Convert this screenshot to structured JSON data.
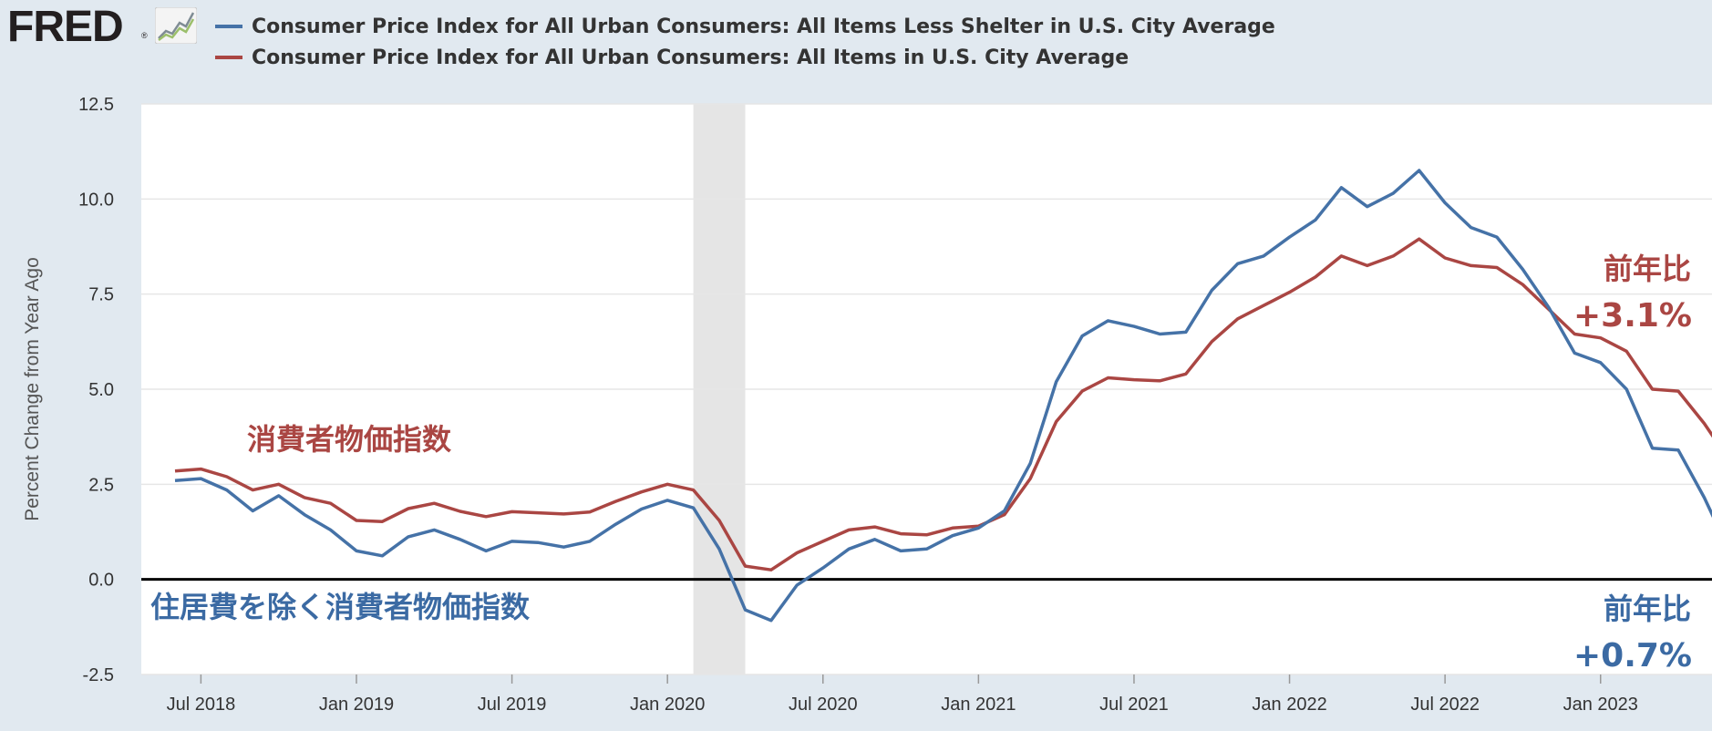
{
  "logo": {
    "text": "FRED",
    "reg": "®"
  },
  "legend": [
    {
      "label": "Consumer Price Index for All Urban Consumers: All Items Less Shelter in U.S. City Average",
      "color": "#4572a7"
    },
    {
      "label": "Consumer Price Index for All Urban Consumers: All Items in U.S. City Average",
      "color": "#aa4643"
    }
  ],
  "colors": {
    "background": "#e1e9f0",
    "plot": "#ffffff",
    "recession": "#e5e5e5",
    "zero_line": "#000000",
    "grid": "#e6e6e6"
  },
  "annotations": {
    "cpi_label": "消費者物価指数",
    "less_shelter_label": "住居費を除く消費者物価指数",
    "cpi_yoy_title": "前年比",
    "cpi_yoy_value": "+3.1%",
    "less_shelter_yoy_title": "前年比",
    "less_shelter_yoy_value": "+0.7%"
  },
  "chart_data": {
    "type": "line",
    "ylabel": "Percent Change from Year Ago",
    "ylim": [
      -2.5,
      12.5
    ],
    "yticks": [
      -2.5,
      0.0,
      2.5,
      5.0,
      7.5,
      10.0,
      12.5
    ],
    "ytick_labels": [
      "-2.5",
      "0.0",
      "2.5",
      "5.0",
      "7.5",
      "10.0",
      "12.5"
    ],
    "xlim": [
      "2018-05",
      "2023-06"
    ],
    "xticks": [
      "2018-07",
      "2019-01",
      "2019-07",
      "2020-01",
      "2020-07",
      "2021-01",
      "2021-07",
      "2022-01",
      "2022-07",
      "2023-01"
    ],
    "xtick_labels": [
      "Jul 2018",
      "Jan 2019",
      "Jul 2019",
      "Jan 2020",
      "Jul 2020",
      "Jan 2021",
      "Jul 2021",
      "Jan 2022",
      "Jul 2022",
      "Jan 2023"
    ],
    "grid": true,
    "legend_position": "top",
    "recession": [
      "2020-02",
      "2020-04"
    ],
    "x": [
      "2018-06",
      "2018-07",
      "2018-08",
      "2018-09",
      "2018-10",
      "2018-11",
      "2018-12",
      "2019-01",
      "2019-02",
      "2019-03",
      "2019-04",
      "2019-05",
      "2019-06",
      "2019-07",
      "2019-08",
      "2019-09",
      "2019-10",
      "2019-11",
      "2019-12",
      "2020-01",
      "2020-02",
      "2020-03",
      "2020-04",
      "2020-05",
      "2020-06",
      "2020-07",
      "2020-08",
      "2020-09",
      "2020-10",
      "2020-11",
      "2020-12",
      "2021-01",
      "2021-02",
      "2021-03",
      "2021-04",
      "2021-05",
      "2021-06",
      "2021-07",
      "2021-08",
      "2021-09",
      "2021-10",
      "2021-11",
      "2021-12",
      "2022-01",
      "2022-02",
      "2022-03",
      "2022-04",
      "2022-05",
      "2022-06",
      "2022-07",
      "2022-08",
      "2022-09",
      "2022-10",
      "2022-11",
      "2022-12",
      "2023-01",
      "2023-02",
      "2023-03",
      "2023-04",
      "2023-05",
      "2023-06"
    ],
    "series": [
      {
        "name": "Consumer Price Index for All Urban Consumers: All Items Less Shelter in U.S. City Average",
        "color": "#4572a7",
        "values": [
          2.6,
          2.65,
          2.35,
          1.8,
          2.2,
          1.7,
          1.3,
          0.75,
          0.62,
          1.12,
          1.3,
          1.05,
          0.75,
          1.0,
          0.97,
          0.85,
          1.0,
          1.45,
          1.85,
          2.08,
          1.88,
          0.8,
          -0.8,
          -1.08,
          -0.15,
          0.3,
          0.8,
          1.05,
          0.75,
          0.8,
          1.15,
          1.35,
          1.8,
          3.05,
          5.2,
          6.4,
          6.8,
          6.65,
          6.45,
          6.5,
          7.6,
          8.3,
          8.5,
          9.0,
          9.45,
          10.3,
          9.8,
          10.15,
          10.75,
          9.9,
          9.25,
          9.0,
          8.15,
          7.15,
          5.95,
          5.7,
          5.0,
          3.45,
          3.4,
          2.15,
          0.7
        ]
      },
      {
        "name": "Consumer Price Index for All Urban Consumers: All Items in U.S. City Average",
        "color": "#aa4643",
        "values": [
          2.85,
          2.9,
          2.7,
          2.35,
          2.5,
          2.15,
          2.0,
          1.55,
          1.52,
          1.86,
          2.0,
          1.79,
          1.65,
          1.78,
          1.75,
          1.72,
          1.77,
          2.05,
          2.3,
          2.5,
          2.35,
          1.55,
          0.35,
          0.25,
          0.7,
          1.0,
          1.3,
          1.38,
          1.2,
          1.17,
          1.35,
          1.4,
          1.7,
          2.65,
          4.15,
          4.95,
          5.3,
          5.25,
          5.22,
          5.4,
          6.25,
          6.85,
          7.2,
          7.55,
          7.95,
          8.5,
          8.25,
          8.5,
          8.95,
          8.45,
          8.25,
          8.2,
          7.75,
          7.1,
          6.45,
          6.35,
          6.0,
          5.0,
          4.95,
          4.1,
          3.1
        ]
      }
    ]
  }
}
